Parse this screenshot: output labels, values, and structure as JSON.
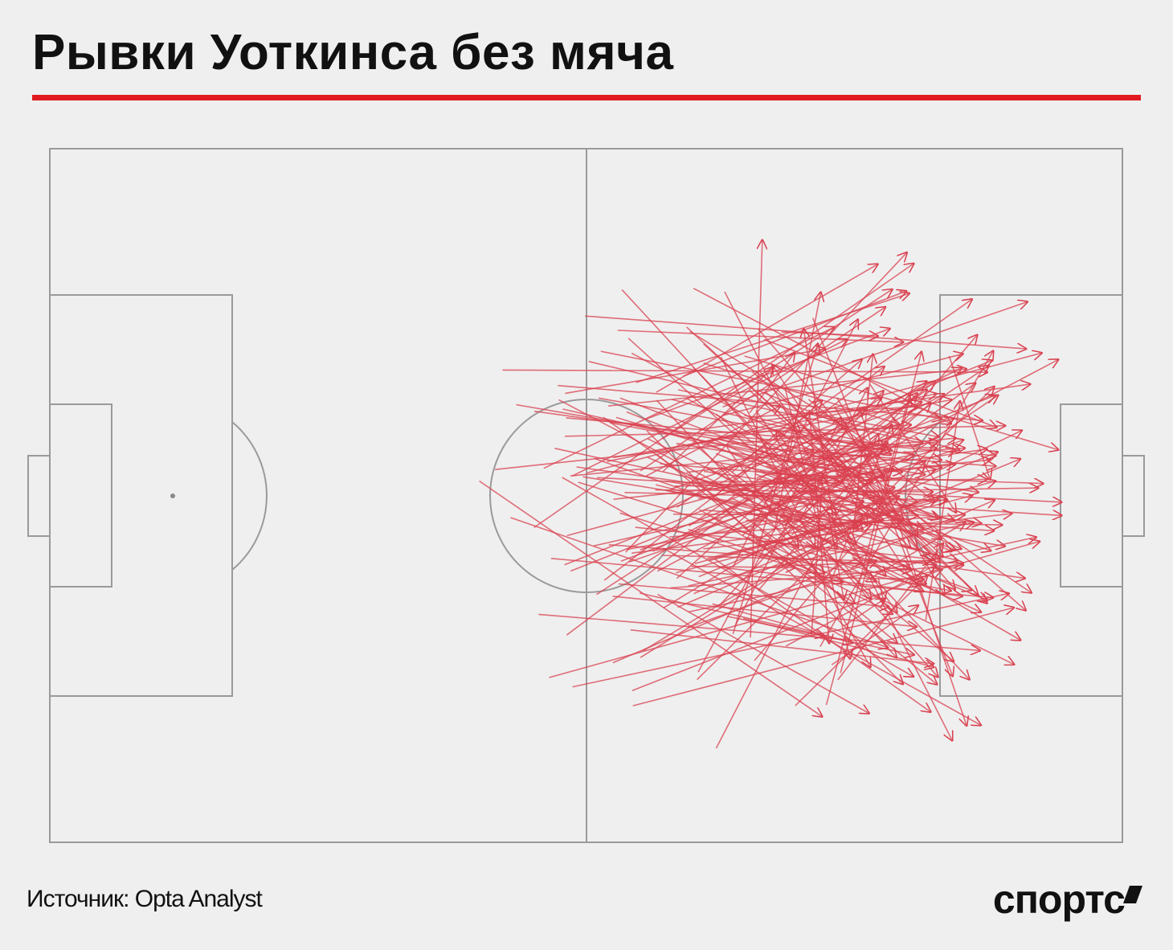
{
  "header": {
    "title": "Рывки Уоткинса без мяча"
  },
  "footer": {
    "source": "Источник: Opta Analyst",
    "logo": "спортс"
  }
}
